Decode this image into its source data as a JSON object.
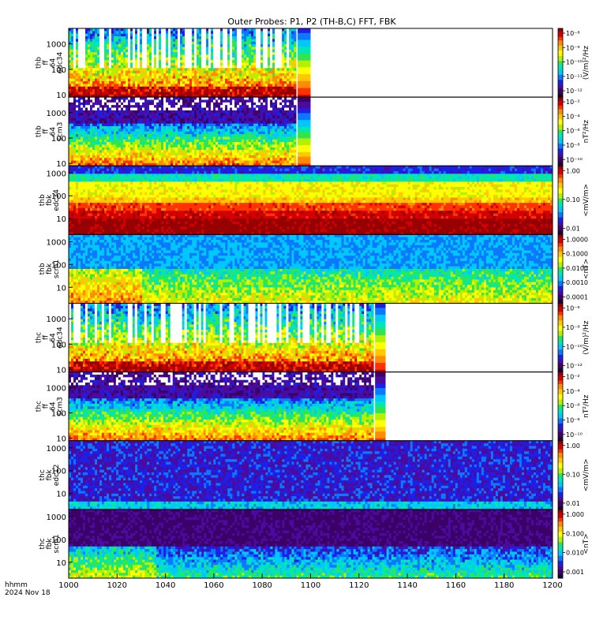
{
  "chart_data": {
    "type": "heatmap",
    "title": "Outer Probes: P1, P2 (TH-B,C) FFT, FBK",
    "x_axis": {
      "range": [
        1000,
        1200
      ],
      "tick_labels": [
        "1000",
        "1020",
        "1040",
        "1060",
        "1080",
        "1100",
        "1120",
        "1140",
        "1160",
        "1180",
        "1200"
      ],
      "label_line1": "hhmm",
      "label_line2": "2024 Nov 18"
    },
    "panels": [
      {
        "label": [
          "thb",
          "ff",
          "64",
          "edc34"
        ],
        "y_ticks": [
          "1000",
          "100",
          "10"
        ],
        "y_range": [
          8,
          4096
        ],
        "cbar_ticks": [
          "10⁻⁸",
          "10⁻⁹",
          "10⁻¹⁰",
          "10⁻¹¹",
          "10⁻¹²"
        ],
        "cbar_label": "(V/m)²/Hz",
        "data_end_hhmm": 1094,
        "colorbar_strip_end_hhmm": 1100,
        "profile": "ffe"
      },
      {
        "label": [
          "thb",
          "ff",
          "64",
          "scm3"
        ],
        "y_ticks": [
          "1000",
          "100",
          "10"
        ],
        "y_range": [
          8,
          4096
        ],
        "cbar_ticks": [
          "10⁻²",
          "10⁻⁴",
          "10⁻⁶",
          "10⁻⁸",
          "10⁻¹⁰"
        ],
        "cbar_label": "nT²/Hz",
        "data_end_hhmm": 1094,
        "colorbar_strip_end_hhmm": 1100,
        "profile": "ffs"
      },
      {
        "label": [
          "thb",
          "fbk",
          "edc34"
        ],
        "y_ticks": [
          "1000",
          "100",
          "10"
        ],
        "y_range": [
          2,
          2048
        ],
        "cbar_ticks": [
          "1.00",
          "0.10",
          "0.01"
        ],
        "cbar_label": "<mV/m>",
        "data_end_hhmm": 1200,
        "profile": "fbe"
      },
      {
        "label": [
          "thb",
          "fbk",
          "scm1"
        ],
        "y_ticks": [
          "1000",
          "100",
          "10"
        ],
        "y_range": [
          2,
          2048
        ],
        "cbar_ticks": [
          "1.0000",
          "0.1000",
          "0.0100",
          "0.0010",
          "0.0001"
        ],
        "cbar_label": "<nT>",
        "data_end_hhmm": 1200,
        "profile": "fbs"
      },
      {
        "label": [
          "thc",
          "ff",
          "64",
          "edc34"
        ],
        "y_ticks": [
          "1000",
          "100",
          "10"
        ],
        "y_range": [
          8,
          4096
        ],
        "cbar_ticks": [
          "10⁻⁶",
          "10⁻⁸",
          "10⁻¹⁰",
          "10⁻¹²"
        ],
        "cbar_label": "(V/m)²/Hz",
        "data_end_hhmm": 1126,
        "colorbar_strip_end_hhmm": 1131,
        "profile": "ffe"
      },
      {
        "label": [
          "thc",
          "ff",
          "64",
          "scm3"
        ],
        "y_ticks": [
          "1000",
          "100",
          "10"
        ],
        "y_range": [
          8,
          4096
        ],
        "cbar_ticks": [
          "10⁻²",
          "10⁻⁴",
          "10⁻⁶",
          "10⁻⁸",
          "10⁻¹⁰"
        ],
        "cbar_label": "nT²/Hz",
        "data_end_hhmm": 1126,
        "colorbar_strip_end_hhmm": 1131,
        "profile": "ffs"
      },
      {
        "label": [
          "thc",
          "fbk",
          "edc12"
        ],
        "y_ticks": [
          "1000",
          "100",
          "10"
        ],
        "y_range": [
          2,
          2048
        ],
        "cbar_ticks": [
          "1.00",
          "0.10",
          "0.01"
        ],
        "cbar_label": "<mV/m>",
        "data_end_hhmm": 1200,
        "profile": "fbe2"
      },
      {
        "label": [
          "thc",
          "fbk",
          "scm1"
        ],
        "y_ticks": [
          "1000",
          "100",
          "10"
        ],
        "y_range": [
          2,
          2048
        ],
        "cbar_ticks": [
          "1.000",
          "0.100",
          "0.010",
          "0.001"
        ],
        "cbar_label": "<nT>",
        "data_end_hhmm": 1200,
        "profile": "fbs2"
      }
    ],
    "colormap": [
      "#1a0033",
      "#3c0066",
      "#4b0b9e",
      "#1e1ee6",
      "#0a78ff",
      "#00c8ff",
      "#00e6b4",
      "#30e650",
      "#b4f000",
      "#ffff00",
      "#ffc800",
      "#ff8c00",
      "#ff3200",
      "#d20000",
      "#960000"
    ]
  }
}
